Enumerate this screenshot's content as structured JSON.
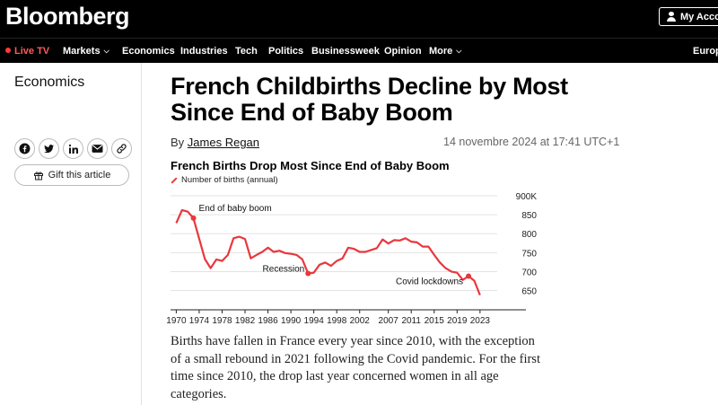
{
  "header": {
    "logo": "Bloomberg",
    "account_label": "My Accou"
  },
  "nav": {
    "live": "Live TV",
    "items": [
      "Markets",
      "Economics",
      "Industries",
      "Tech",
      "Politics",
      "Businessweek",
      "Opinion",
      "More"
    ],
    "right": "Europe"
  },
  "rail": {
    "section": "Economics",
    "share_icons": [
      "facebook-icon",
      "twitter-icon",
      "linkedin-icon",
      "email-icon",
      "link-icon"
    ],
    "gift_label": "Gift this article"
  },
  "article": {
    "headline": "French Childbirths Decline by Most Since End of Baby Boom",
    "by": "By",
    "author": "James Regan",
    "timestamp": "14 novembre 2024 at 17:41 UTC+1",
    "body": "Births have fallen in France every year since 2010, with the exception of a small rebound in 2021 following the Covid pandemic. For the first time since 2010, the drop last year concerned women in all age categories."
  },
  "chart_data": {
    "type": "line",
    "title": "French Births Drop Most Since End of Baby Boom",
    "series": [
      {
        "name": "Number of births (annual)",
        "color": "#e8383d",
        "x": [
          1970,
          1971,
          1972,
          1973,
          1974,
          1975,
          1976,
          1977,
          1978,
          1979,
          1980,
          1981,
          1982,
          1983,
          1984,
          1985,
          1986,
          1987,
          1988,
          1989,
          1990,
          1991,
          1992,
          1993,
          1994,
          1995,
          1996,
          1997,
          1998,
          1999,
          2000,
          2001,
          2002,
          2003,
          2004,
          2005,
          2006,
          2007,
          2008,
          2009,
          2010,
          2011,
          2012,
          2013,
          2014,
          2015,
          2016,
          2017,
          2018,
          2019,
          2020,
          2021,
          2022,
          2023
        ],
        "values": [
          828,
          862,
          858,
          841,
          787,
          733,
          709,
          732,
          728,
          744,
          788,
          792,
          786,
          735,
          744,
          752,
          763,
          752,
          755,
          749,
          747,
          744,
          732,
          695,
          697,
          718,
          724,
          715,
          728,
          735,
          763,
          760,
          752,
          752,
          757,
          762,
          785,
          774,
          783,
          782,
          788,
          779,
          777,
          766,
          766,
          744,
          724,
          709,
          700,
          697,
          678,
          688,
          676,
          638
        ]
      }
    ],
    "ylim": [
      630,
      900
    ],
    "xlim": [
      1969,
      2026
    ],
    "y_ticks": [
      650,
      700,
      750,
      800,
      850,
      900
    ],
    "y_tick_labels": [
      "650",
      "700",
      "750",
      "800",
      "850",
      "900K"
    ],
    "x_ticks": [
      1970,
      1974,
      1978,
      1982,
      1986,
      1990,
      1994,
      1998,
      2002,
      2007,
      2011,
      2015,
      2019,
      2023
    ],
    "annotations": [
      {
        "text": "End of baby boom",
        "x": 1973,
        "y": 841
      },
      {
        "text": "Recession",
        "x": 1993,
        "y": 695
      },
      {
        "text": "Covid lockdowns",
        "x": 2021,
        "y": 688
      }
    ],
    "grid": true
  }
}
